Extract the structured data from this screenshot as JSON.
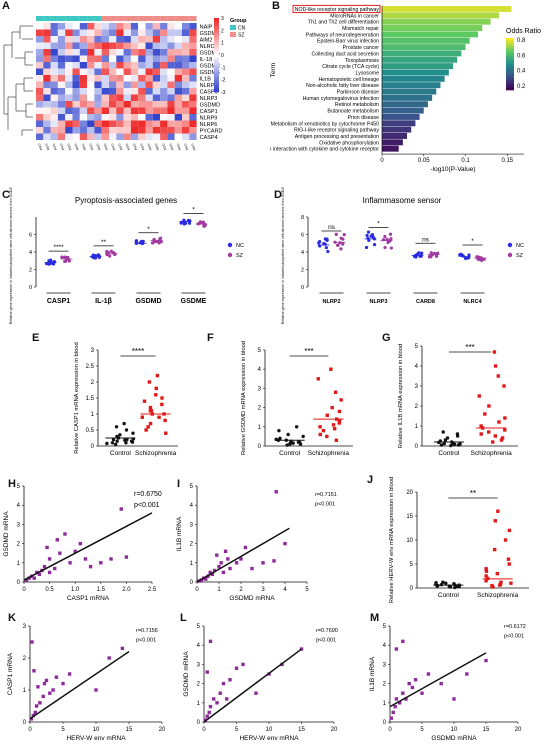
{
  "panels": {
    "A": {
      "letter": "A",
      "legend_title": "Group",
      "groups": [
        {
          "label": "CN",
          "color": "#3fc7c4"
        },
        {
          "label": "SZ",
          "color": "#ee8e8a"
        }
      ],
      "genes": [
        "NAIP",
        "GSDME",
        "AIM2",
        "NLRC4",
        "GSDMA",
        "IL-18",
        "GSDMC",
        "GSDMB",
        "IL1B",
        "NLRP2",
        "CASP5",
        "NLRP3",
        "GSDMD",
        "CASP1",
        "NLRP9",
        "NLRP6",
        "PYCARD",
        "CASP4"
      ],
      "colorbar_ticks": [
        "3",
        "2",
        "1",
        "0",
        "-1",
        "-2",
        "-3"
      ],
      "low_color": "#3344cc",
      "mid_color": "#ffffff",
      "high_color": "#ee2a2a"
    },
    "B": {
      "letter": "B",
      "pathways": [
        "NOD-like receptor signaling pathway",
        "MicroRNAs in cancer",
        "Th1 and Th2 cell differentiation",
        "Mismatch repair",
        "Pathways of neurodegeneration",
        "Epstein-Barr virus infection",
        "Prostate cancer",
        "Collecting duct acid secretion",
        "Toxoplasmosis",
        "Citrate cycle (TCA cycle)",
        "Lysosome",
        "Hematopoietic cell lineage",
        "Non-alcoholic fatty liver disease",
        "Parkinson disease",
        "Human cytomegalovirus infection",
        "Retinol metabolism",
        "Butanoate metabolism",
        "Prion disease",
        "Metabolism of xenobiotics by cytochrome P450",
        "RIG-I-like receptor signaling pathway",
        "Antigen processing and presentation",
        "Oxidative phosphorylation",
        "Viral protein interaction with cytokine and cytokine receptor"
      ],
      "highlight_color": "#e02020",
      "y_axis_label": "Term",
      "x_axis_label": "-log10(P-Value)",
      "x_ticks": [
        "0",
        "0.05",
        "0.1",
        "0.15"
      ],
      "legend_title": "Odds Ratio",
      "legend_ticks": [
        "0.8",
        "0.6",
        "0.4",
        "0.2"
      ]
    },
    "C": {
      "letter": "C",
      "title": "Pyroptosis-associated genes",
      "y_label": "Relative gene expression in induced pluripotent stem cell-derived neurons from GSE29673",
      "y_ticks": [
        "6",
        "4",
        "2",
        "0"
      ],
      "categories": [
        "CASP1",
        "IL-1β",
        "GSDMD",
        "GSDME"
      ],
      "sig": [
        "****",
        "**",
        "*",
        "*"
      ],
      "legend": [
        {
          "label": "NC",
          "color": "#2a2ae0"
        },
        {
          "label": "SZ",
          "color": "#a03aa0"
        }
      ]
    },
    "D": {
      "letter": "D",
      "title": "Inflammasome sensor",
      "y_label": "Relative gene expression in induced pluripotent stem cell-derived neurons from GSE29673",
      "y_ticks": [
        "8",
        "6",
        "4",
        "2",
        "0"
      ],
      "categories": [
        "NLRP2",
        "NLRP3",
        "CARD8",
        "NLRC4"
      ],
      "sig": [
        "ns",
        "*",
        "ns",
        "*"
      ],
      "legend": [
        {
          "label": "NC",
          "color": "#2a2ae0"
        },
        {
          "label": "SZ",
          "color": "#a03aa0"
        }
      ]
    },
    "E": {
      "letter": "E",
      "y_label": "Relative CASP1 mRNA expression in blood",
      "y_ticks": [
        "3",
        "2.5",
        "2",
        "1.5",
        "1",
        "0.5",
        "0"
      ],
      "x_labels": [
        "Control",
        "Schizophrenia"
      ],
      "sig": "****"
    },
    "F": {
      "letter": "F",
      "y_label": "Relative GSDMD mRNA expression in blood",
      "y_ticks": [
        "5",
        "4",
        "3",
        "2",
        "1",
        "0"
      ],
      "x_labels": [
        "Control",
        "Schizophrenia"
      ],
      "sig": "***"
    },
    "G": {
      "letter": "G",
      "y_label": "Relative IL1B mRNA expression in blood",
      "y_ticks": [
        "5",
        "4",
        "3",
        "2",
        "1",
        "0"
      ],
      "x_labels": [
        "Control",
        "Schizophrenia"
      ],
      "sig": "***"
    },
    "H": {
      "letter": "H",
      "x_label": "CASP1 mRNA",
      "y_label": "GSDMD mRNA",
      "x_ticks": [
        "0",
        "0.5",
        "1.0",
        "1.5",
        "2.0",
        "2.5"
      ],
      "y_ticks": [
        "5",
        "4",
        "3",
        "2",
        "1",
        "0"
      ],
      "r": "r=0.6750",
      "p": "p<0.001"
    },
    "I": {
      "letter": "I",
      "x_label": "GSDMD mRNA",
      "y_label": "IL1B mRNA",
      "x_ticks": [
        "0",
        "1",
        "2",
        "3",
        "4",
        "5"
      ],
      "y_ticks": [
        "5",
        "4",
        "3",
        "2",
        "1",
        "0"
      ],
      "r": "r=0.7151",
      "p": "p<0.001"
    },
    "J": {
      "letter": "J",
      "y_label": "Relative HERV-W env mRNA expression in blood",
      "y_ticks": [
        "20",
        "15",
        "10",
        "5",
        "0"
      ],
      "x_labels": [
        "Control",
        "Schizophrenia"
      ],
      "sig": "**"
    },
    "K": {
      "letter": "K",
      "x_label": "HERV-W env mRNA",
      "y_label": "CASP1 mRNA",
      "x_ticks": [
        "0",
        "5",
        "10",
        "15",
        "20"
      ],
      "y_ticks": [
        "3",
        "2",
        "1",
        "0"
      ],
      "r": "r=0.7156",
      "p": "p<0.001"
    },
    "L": {
      "letter": "L",
      "x_label": "HERV-W env mRNA",
      "y_label": "GSDMD mRNA",
      "x_ticks": [
        "0",
        "5",
        "10",
        "15",
        "20"
      ],
      "y_ticks": [
        "5",
        "4",
        "3",
        "2",
        "1",
        "0"
      ],
      "r": "r=0.7690",
      "p": "p<0.001"
    },
    "M": {
      "letter": "M",
      "x_label": "GSDMD mRNA",
      "y_label": "IL1B mRNA",
      "x_ticks": [
        "0",
        "5",
        "10",
        "15",
        "20"
      ],
      "y_ticks": [
        "5",
        "4",
        "3",
        "2",
        "1",
        "0"
      ],
      "r": "r=0.6172",
      "p": "p<0.001"
    }
  },
  "chart_data": [
    {
      "type": "bar",
      "panel": "B",
      "categories": [
        "NOD-like receptor signaling pathway",
        "MicroRNAs in cancer",
        "Th1 and Th2 cell differentiation",
        "Mismatch repair",
        "Pathways of neurodegeneration",
        "Epstein-Barr virus infection",
        "Prostate cancer",
        "Collecting duct acid secretion",
        "Toxoplasmosis",
        "Citrate cycle (TCA cycle)",
        "Lysosome",
        "Hematopoietic cell lineage",
        "Non-alcoholic fatty liver disease",
        "Parkinson disease",
        "Human cytomegalovirus infection",
        "Retinol metabolism",
        "Butanoate metabolism",
        "Prion disease",
        "Metabolism of xenobiotics by cytochrome P450",
        "RIG-I-like receptor signaling pathway",
        "Antigen processing and presentation",
        "Oxidative phosphorylation",
        "Viral protein interaction with cytokine and cytokine receptor"
      ],
      "values": [
        0.155,
        0.14,
        0.13,
        0.12,
        0.115,
        0.105,
        0.1,
        0.095,
        0.09,
        0.085,
        0.08,
        0.075,
        0.07,
        0.065,
        0.06,
        0.055,
        0.05,
        0.045,
        0.04,
        0.035,
        0.03,
        0.025,
        0.02
      ],
      "odds_ratio": [
        0.9,
        0.85,
        0.8,
        0.78,
        0.75,
        0.72,
        0.7,
        0.65,
        0.62,
        0.6,
        0.55,
        0.52,
        0.5,
        0.48,
        0.45,
        0.42,
        0.4,
        0.35,
        0.3,
        0.28,
        0.25,
        0.22,
        0.2
      ],
      "xlim": [
        0,
        0.17
      ]
    },
    {
      "type": "scatter",
      "panel": "C",
      "categories": [
        "CASP1",
        "IL-1β",
        "GSDMD",
        "GSDME"
      ],
      "series": [
        {
          "name": "NC",
          "values": [
            2.8,
            3.5,
            5.0,
            7.5
          ]
        },
        {
          "name": "SZ",
          "values": [
            3.2,
            3.8,
            5.3,
            7.2
          ]
        }
      ],
      "ylim": [
        0,
        8
      ]
    },
    {
      "type": "scatter",
      "panel": "D",
      "categories": [
        "NLRP2",
        "NLRP3",
        "CARD8",
        "NLRC4"
      ],
      "series": [
        {
          "name": "NC",
          "values": [
            4.8,
            5.5,
            3.6,
            3.5
          ]
        },
        {
          "name": "SZ",
          "values": [
            5.1,
            5.3,
            3.7,
            3.3
          ]
        }
      ],
      "ylim": [
        0,
        8
      ]
    },
    {
      "type": "scatter",
      "panel": "E",
      "categories": [
        "Control",
        "Schizophrenia"
      ],
      "means": [
        0.25,
        1.0
      ],
      "ylim": [
        0,
        3
      ],
      "control": [
        0.05,
        0.1,
        0.12,
        0.15,
        0.18,
        0.2,
        0.22,
        0.25,
        0.3,
        0.35,
        0.4,
        0.5,
        0.6,
        0.7,
        0.1,
        0.08,
        0.15,
        0.2
      ],
      "schizophrenia": [
        0.4,
        0.5,
        0.6,
        0.7,
        0.8,
        0.9,
        1.0,
        1.1,
        1.2,
        1.3,
        1.4,
        1.5,
        1.6,
        1.8,
        2.0,
        2.2,
        0.9,
        1.0,
        1.1
      ]
    },
    {
      "type": "scatter",
      "panel": "F",
      "categories": [
        "Control",
        "Schizophrenia"
      ],
      "means": [
        0.3,
        1.4
      ],
      "ylim": [
        0,
        5
      ],
      "control": [
        0.05,
        0.1,
        0.15,
        0.2,
        0.25,
        0.3,
        0.35,
        0.4,
        0.5,
        0.6,
        0.8,
        1.0,
        0.1,
        0.2,
        0.3,
        0.15
      ],
      "schizophrenia": [
        0.3,
        0.5,
        0.6,
        0.8,
        1.0,
        1.1,
        1.2,
        1.4,
        1.6,
        1.8,
        2.0,
        2.4,
        2.8,
        3.5,
        4.0,
        1.3,
        0.9
      ]
    },
    {
      "type": "scatter",
      "panel": "G",
      "categories": [
        "Control",
        "Schizophrenia"
      ],
      "means": [
        0.2,
        0.9
      ],
      "ylim": [
        0,
        5
      ],
      "control": [
        0.02,
        0.05,
        0.08,
        0.1,
        0.12,
        0.15,
        0.18,
        0.2,
        0.25,
        0.3,
        0.4,
        0.5,
        0.6,
        0.7,
        0.1,
        0.05
      ],
      "schizophrenia": [
        0.2,
        0.3,
        0.4,
        0.5,
        0.6,
        0.7,
        0.8,
        1.0,
        1.2,
        1.4,
        1.6,
        2.0,
        2.5,
        3.0,
        3.5,
        4.0,
        4.7,
        0.9
      ]
    },
    {
      "type": "scatter",
      "panel": "H",
      "xlim": [
        0,
        2.5
      ],
      "ylim": [
        0,
        5
      ],
      "fit": [
        [
          0,
          0.1
        ],
        [
          2.5,
          3.6
        ]
      ],
      "points": [
        [
          0.05,
          0.1
        ],
        [
          0.1,
          0.2
        ],
        [
          0.15,
          0.3
        ],
        [
          0.2,
          0.2
        ],
        [
          0.25,
          0.5
        ],
        [
          0.3,
          0.4
        ],
        [
          0.35,
          0.6
        ],
        [
          0.4,
          0.8
        ],
        [
          0.5,
          0.5
        ],
        [
          0.5,
          1.2
        ],
        [
          0.6,
          0.7
        ],
        [
          0.7,
          1.5
        ],
        [
          0.8,
          2.5
        ],
        [
          0.9,
          1.0
        ],
        [
          1.0,
          1.6
        ],
        [
          1.1,
          2.0
        ],
        [
          1.2,
          1.2
        ],
        [
          1.3,
          0.8
        ],
        [
          1.5,
          1.0
        ],
        [
          1.7,
          1.2
        ],
        [
          1.9,
          3.8
        ],
        [
          2.0,
          1.3
        ],
        [
          0.45,
          1.8
        ],
        [
          0.65,
          2.2
        ]
      ]
    },
    {
      "type": "scatter",
      "panel": "I",
      "xlim": [
        0,
        5
      ],
      "ylim": [
        0,
        5
      ],
      "fit": [
        [
          0,
          0
        ],
        [
          4.2,
          2.8
        ]
      ],
      "points": [
        [
          0.1,
          0.05
        ],
        [
          0.2,
          0.1
        ],
        [
          0.3,
          0.2
        ],
        [
          0.4,
          0.15
        ],
        [
          0.5,
          0.3
        ],
        [
          0.6,
          0.5
        ],
        [
          0.7,
          0.4
        ],
        [
          0.8,
          0.6
        ],
        [
          1.0,
          0.8
        ],
        [
          1.1,
          1.0
        ],
        [
          1.2,
          0.5
        ],
        [
          1.4,
          1.2
        ],
        [
          1.5,
          0.7
        ],
        [
          1.8,
          1.0
        ],
        [
          2.0,
          1.2
        ],
        [
          2.2,
          1.8
        ],
        [
          2.5,
          0.7
        ],
        [
          3.0,
          1.0
        ],
        [
          3.5,
          1.1
        ],
        [
          3.6,
          4.7
        ],
        [
          4.0,
          2.0
        ],
        [
          0.9,
          1.4
        ],
        [
          1.3,
          1.6
        ]
      ]
    },
    {
      "type": "scatter",
      "panel": "J",
      "categories": [
        "Control",
        "Schizophrenia"
      ],
      "means": [
        0.6,
        1.9
      ],
      "ylim": [
        0,
        20
      ],
      "control": [
        0.1,
        0.2,
        0.3,
        0.4,
        0.5,
        0.6,
        0.7,
        0.8,
        1.0,
        1.2,
        0.3,
        0.5,
        0.4,
        0.6,
        0.9,
        1.1
      ],
      "schizophrenia": [
        0.2,
        0.5,
        0.8,
        1.0,
        1.5,
        2.0,
        2.5,
        3.0,
        3.5,
        4.0,
        5.0,
        6.0,
        8.0,
        10.0,
        12.0,
        14.0,
        16.0,
        1.2,
        0.6
      ]
    },
    {
      "type": "scatter",
      "panel": "K",
      "xlim": [
        0,
        20
      ],
      "ylim": [
        0,
        3
      ],
      "fit": [
        [
          0,
          0.1
        ],
        [
          15,
          2.2
        ]
      ],
      "points": [
        [
          0.2,
          0.1
        ],
        [
          0.5,
          0.2
        ],
        [
          0.8,
          0.3
        ],
        [
          1,
          0.5
        ],
        [
          1.2,
          1.1
        ],
        [
          1.5,
          0.6
        ],
        [
          2,
          0.8
        ],
        [
          2.2,
          1.2
        ],
        [
          2.5,
          1.3
        ],
        [
          3,
          0.9
        ],
        [
          3.5,
          1.0
        ],
        [
          4,
          1.4
        ],
        [
          5,
          1.2
        ],
        [
          6,
          1.5
        ],
        [
          10,
          1.0
        ],
        [
          12,
          2.0
        ],
        [
          14,
          2.3
        ],
        [
          0.3,
          2.5
        ],
        [
          0.6,
          1.6
        ]
      ]
    },
    {
      "type": "scatter",
      "panel": "L",
      "xlim": [
        0,
        20
      ],
      "ylim": [
        0,
        5
      ],
      "fit": [
        [
          0,
          0
        ],
        [
          15,
          3.8
        ]
      ],
      "points": [
        [
          0.2,
          0.1
        ],
        [
          0.5,
          0.3
        ],
        [
          0.8,
          0.5
        ],
        [
          1,
          0.8
        ],
        [
          1.5,
          1.2
        ],
        [
          2,
          1.0
        ],
        [
          2.5,
          1.5
        ],
        [
          3,
          2.0
        ],
        [
          3.5,
          1.2
        ],
        [
          4,
          2.2
        ],
        [
          5,
          2.8
        ],
        [
          6,
          3.0
        ],
        [
          8,
          1.5
        ],
        [
          10,
          2.5
        ],
        [
          12,
          3.0
        ],
        [
          15,
          3.8
        ],
        [
          1,
          4.2
        ],
        [
          0.5,
          2.6
        ]
      ]
    },
    {
      "type": "scatter",
      "panel": "M",
      "xlim": [
        0,
        20
      ],
      "ylim": [
        0,
        5
      ],
      "fit": [
        [
          0,
          0.8
        ],
        [
          15,
          3.6
        ]
      ],
      "points": [
        [
          0.2,
          0.2
        ],
        [
          0.5,
          0.5
        ],
        [
          0.8,
          0.8
        ],
        [
          1,
          1.2
        ],
        [
          1.5,
          1.0
        ],
        [
          2,
          1.5
        ],
        [
          2.5,
          1.2
        ],
        [
          3,
          2.0
        ],
        [
          3.5,
          1.8
        ],
        [
          4,
          2.2
        ],
        [
          5,
          1.5
        ],
        [
          6,
          2.5
        ],
        [
          8,
          2.0
        ],
        [
          10,
          1.2
        ],
        [
          12,
          2.5
        ],
        [
          15,
          3.2
        ],
        [
          2,
          4.2
        ],
        [
          1,
          3.8
        ]
      ]
    }
  ]
}
